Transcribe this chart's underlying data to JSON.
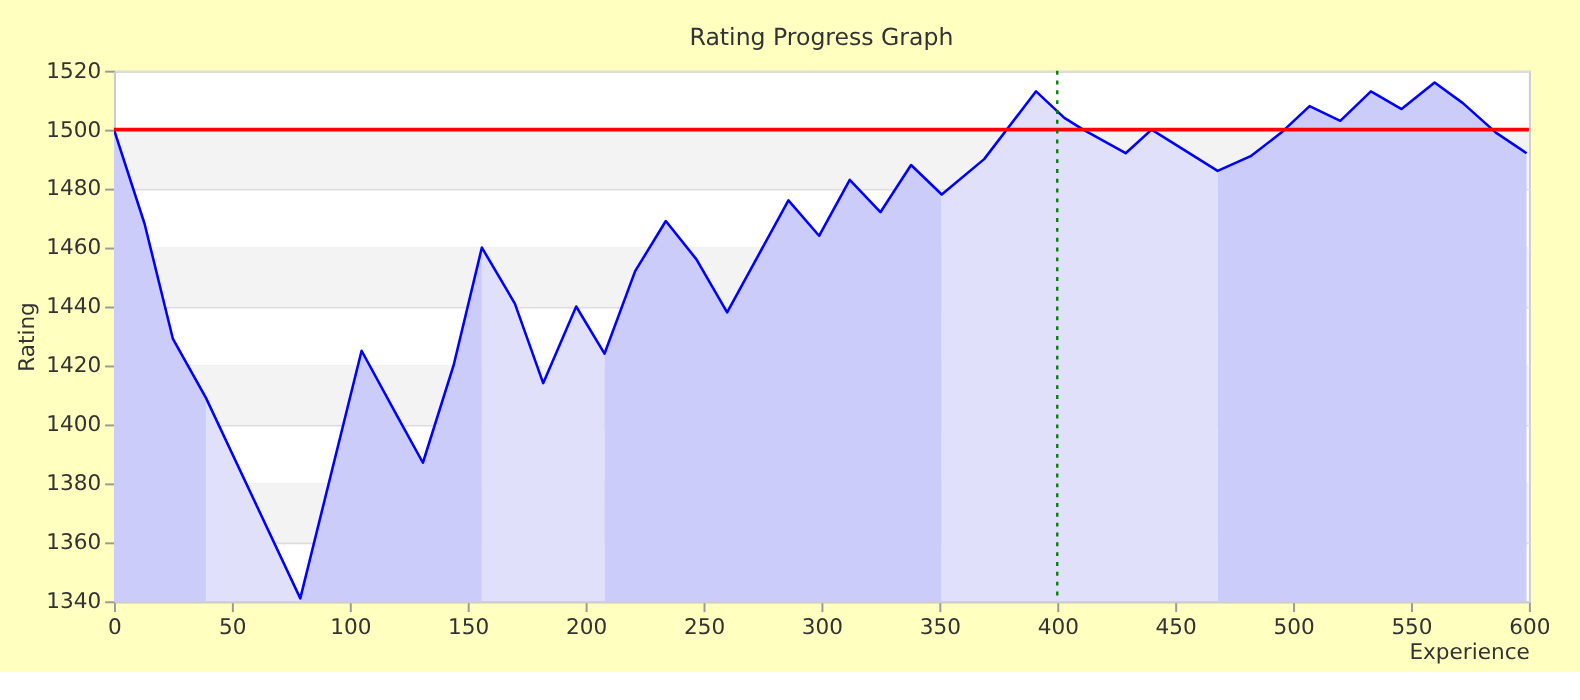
{
  "chart_data": {
    "type": "line",
    "title": "Rating Progress Graph",
    "xlabel": "Experience",
    "ylabel": "Rating",
    "xlim": [
      0,
      600
    ],
    "xticks": [
      0,
      50,
      100,
      150,
      200,
      250,
      300,
      350,
      400,
      450,
      500,
      550,
      600
    ],
    "ylim": [
      1340,
      1520
    ],
    "yticks": [
      1340,
      1360,
      1380,
      1400,
      1420,
      1440,
      1460,
      1480,
      1500,
      1520
    ],
    "grid": "y",
    "series": [
      {
        "type": "area",
        "color": "#ccccfa",
        "x": [
          0,
          13,
          25,
          39
        ],
        "values": [
          1500,
          1468,
          1429,
          1409
        ]
      },
      {
        "type": "area",
        "color": "#e0e0fa",
        "x": [
          39,
          79
        ],
        "values": [
          1409,
          1341
        ]
      },
      {
        "type": "area",
        "color": "#ccccfa",
        "x": [
          79,
          105,
          120,
          131,
          144,
          156
        ],
        "values": [
          1341,
          1425,
          1403,
          1387,
          1420,
          1460
        ]
      },
      {
        "type": "area",
        "color": "#e0e0fa",
        "x": [
          156,
          170,
          182,
          196,
          208
        ],
        "values": [
          1460,
          1441,
          1414,
          1440,
          1424
        ]
      },
      {
        "type": "area",
        "color": "#ccccfa",
        "x": [
          208,
          221,
          234,
          247,
          260,
          273,
          286,
          299,
          312,
          325,
          338,
          351
        ],
        "values": [
          1424,
          1452,
          1469,
          1456,
          1438,
          1457,
          1476,
          1464,
          1483,
          1472,
          1488,
          1478
        ]
      },
      {
        "type": "area",
        "color": "#e0e0fa",
        "x": [
          351,
          369,
          391,
          403,
          411,
          429,
          440,
          468
        ],
        "values": [
          1478,
          1490,
          1513,
          1504,
          1500,
          1492,
          1500,
          1486
        ]
      },
      {
        "type": "area",
        "color": "#ccccfa",
        "x": [
          468,
          482,
          495,
          507,
          520,
          533,
          546,
          560,
          572,
          586,
          599
        ],
        "values": [
          1486,
          1491,
          1499,
          1508,
          1503,
          1513,
          1507,
          1516,
          1509,
          1499,
          1492
        ]
      },
      {
        "color": "#0000ff",
        "x": [
          0,
          13,
          25,
          39,
          79,
          105,
          120,
          131,
          144,
          156,
          170,
          182,
          196,
          208,
          221,
          234,
          247,
          260,
          273,
          286,
          299,
          312,
          325,
          338,
          351,
          369,
          391,
          403,
          411,
          429,
          440,
          468,
          482,
          495,
          507,
          520,
          533,
          546,
          560,
          572,
          586,
          599
        ],
        "values": [
          1500,
          1468,
          1429,
          1409,
          1341,
          1425,
          1403,
          1387,
          1420,
          1460,
          1441,
          1414,
          1440,
          1424,
          1452,
          1469,
          1456,
          1438,
          1457,
          1476,
          1464,
          1483,
          1472,
          1488,
          1478,
          1490,
          1513,
          1504,
          1500,
          1492,
          1500,
          1486,
          1491,
          1499,
          1508,
          1503,
          1513,
          1507,
          1516,
          1509,
          1499,
          1492
        ]
      }
    ],
    "ref_lines": [
      {
        "axis": "y",
        "value": 1500,
        "color": "#ff0000",
        "line_style": "solid"
      },
      {
        "axis": "x",
        "value": 400,
        "color": "#008000",
        "line_style": "dotted"
      }
    ]
  }
}
